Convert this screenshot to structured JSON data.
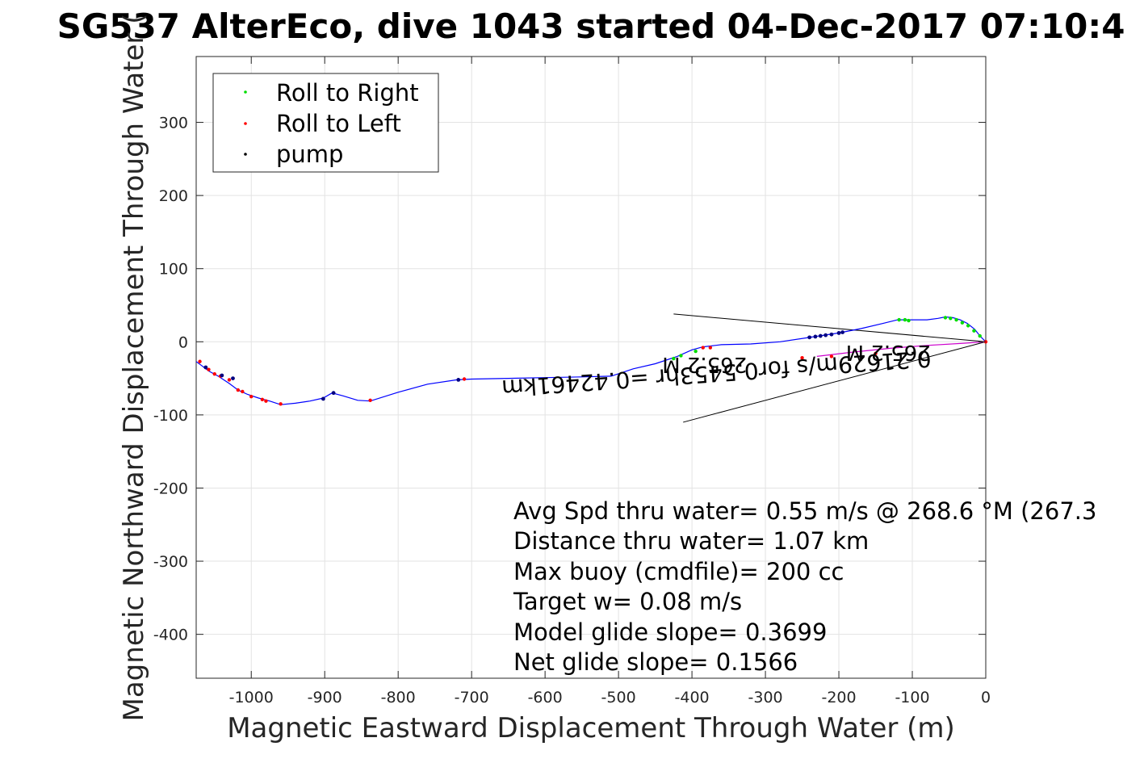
{
  "chart_data": {
    "type": "line",
    "title": "SG537 AlterEco, dive 1043 started 04-Dec-2017 07:10:4",
    "xlabel": "Magnetic Eastward Displacement Through Water (m)",
    "ylabel": "Magnetic Northward Displacement Through Water (",
    "xlim": [
      -1075,
      0
    ],
    "ylim": [
      -460,
      390
    ],
    "xticks": [
      -1000,
      -900,
      -800,
      -700,
      -600,
      -500,
      -400,
      -300,
      -200,
      -100,
      0
    ],
    "yticks": [
      300,
      200,
      100,
      0,
      -100,
      -200,
      -300,
      -400
    ],
    "grid": true,
    "legend": {
      "position": "top-left",
      "entries": [
        {
          "label": "Roll to Right",
          "color": "#00dd00"
        },
        {
          "label": "Roll to Left",
          "color": "#ff0000"
        },
        {
          "label": "pump",
          "color": "#000000"
        }
      ]
    },
    "track": {
      "color": "#0000ff",
      "x": [
        -1075,
        -1067,
        -1058,
        -1045,
        -1030,
        -1018,
        -1005,
        -990,
        -975,
        -960,
        -940,
        -920,
        -902,
        -890,
        -875,
        -855,
        -838,
        -800,
        -760,
        -720,
        -700,
        -650,
        -600,
        -550,
        -510,
        -480,
        -450,
        -420,
        -400,
        -385,
        -360,
        -320,
        -280,
        -240,
        -220,
        -200,
        -170,
        -140,
        -120,
        -95,
        -80,
        -65,
        -55,
        -45,
        -35,
        -25,
        -15,
        -8,
        0
      ],
      "y": [
        -27,
        -33,
        -40,
        -47,
        -57,
        -66,
        -72,
        -77,
        -81,
        -86,
        -84,
        -81,
        -77,
        -70,
        -74,
        -80,
        -81,
        -69,
        -58,
        -52,
        -51,
        -50,
        -49,
        -48,
        -47,
        -37,
        -30,
        -20,
        -11,
        -7,
        -4,
        -3,
        0,
        6,
        9,
        12,
        18,
        25,
        30,
        30,
        30,
        32,
        34,
        33,
        30,
        25,
        17,
        8,
        0
      ]
    },
    "return_leg": {
      "color": "#cc00cc",
      "x": [
        -230,
        -180,
        -130,
        -80,
        -30,
        0
      ],
      "y": [
        -20,
        -14,
        -9,
        -5,
        -2,
        0
      ]
    },
    "roll_right_points": {
      "x": [
        -425,
        -415,
        -395,
        -118,
        -110,
        -105,
        -55,
        -48,
        -40,
        -32,
        -24,
        -16,
        -8
      ],
      "y": [
        -23,
        -19,
        -13,
        30,
        30,
        29,
        33,
        32,
        30,
        26,
        22,
        15,
        8
      ]
    },
    "roll_left_points": {
      "x": [
        -1070,
        -1058,
        -1050,
        -1042,
        -1030,
        -1018,
        -1012,
        -1000,
        -985,
        -980,
        -960,
        -838,
        -710,
        -385,
        -375,
        -250,
        -210,
        -150,
        0
      ],
      "y": [
        -27,
        -38,
        -44,
        -47,
        -52,
        -66,
        -68,
        -75,
        -79,
        -81,
        -85,
        -80,
        -51,
        -8,
        -8,
        -22,
        -20,
        -16,
        0
      ]
    },
    "pump_points": {
      "x": [
        -1062,
        -1040,
        -1025,
        -902,
        -888,
        -718,
        -240,
        -232,
        -225,
        -218,
        -210,
        -200,
        -195
      ],
      "y": [
        -35,
        -46,
        -50,
        -78,
        -70,
        -52,
        6,
        7,
        8,
        9,
        10,
        12,
        13
      ]
    },
    "heading_lines": [
      {
        "x": [
          -425,
          0
        ],
        "y": [
          38,
          0
        ]
      },
      {
        "x": [
          -412,
          0
        ],
        "y": [
          -110,
          0
        ]
      }
    ],
    "overlay_text": [
      {
        "text": "0.21629m/s for0.5453hr =0.42461km",
        "x": -75,
        "y": -12
      },
      {
        "text": "265.2 M",
        "x": -75,
        "y": -5
      },
      {
        "text": "265.2 M",
        "x": -325,
        "y": -22
      }
    ],
    "annotations": [
      "Avg Spd thru water=  0.55 m/s @ 268.6 °M (267.3",
      "Distance thru water=  1.07 km",
      "Max buoy (cmdfile)= 200 cc",
      "Target w= 0.08 m/s",
      "Model glide slope= 0.3699",
      "Net glide slope= 0.1566"
    ]
  }
}
